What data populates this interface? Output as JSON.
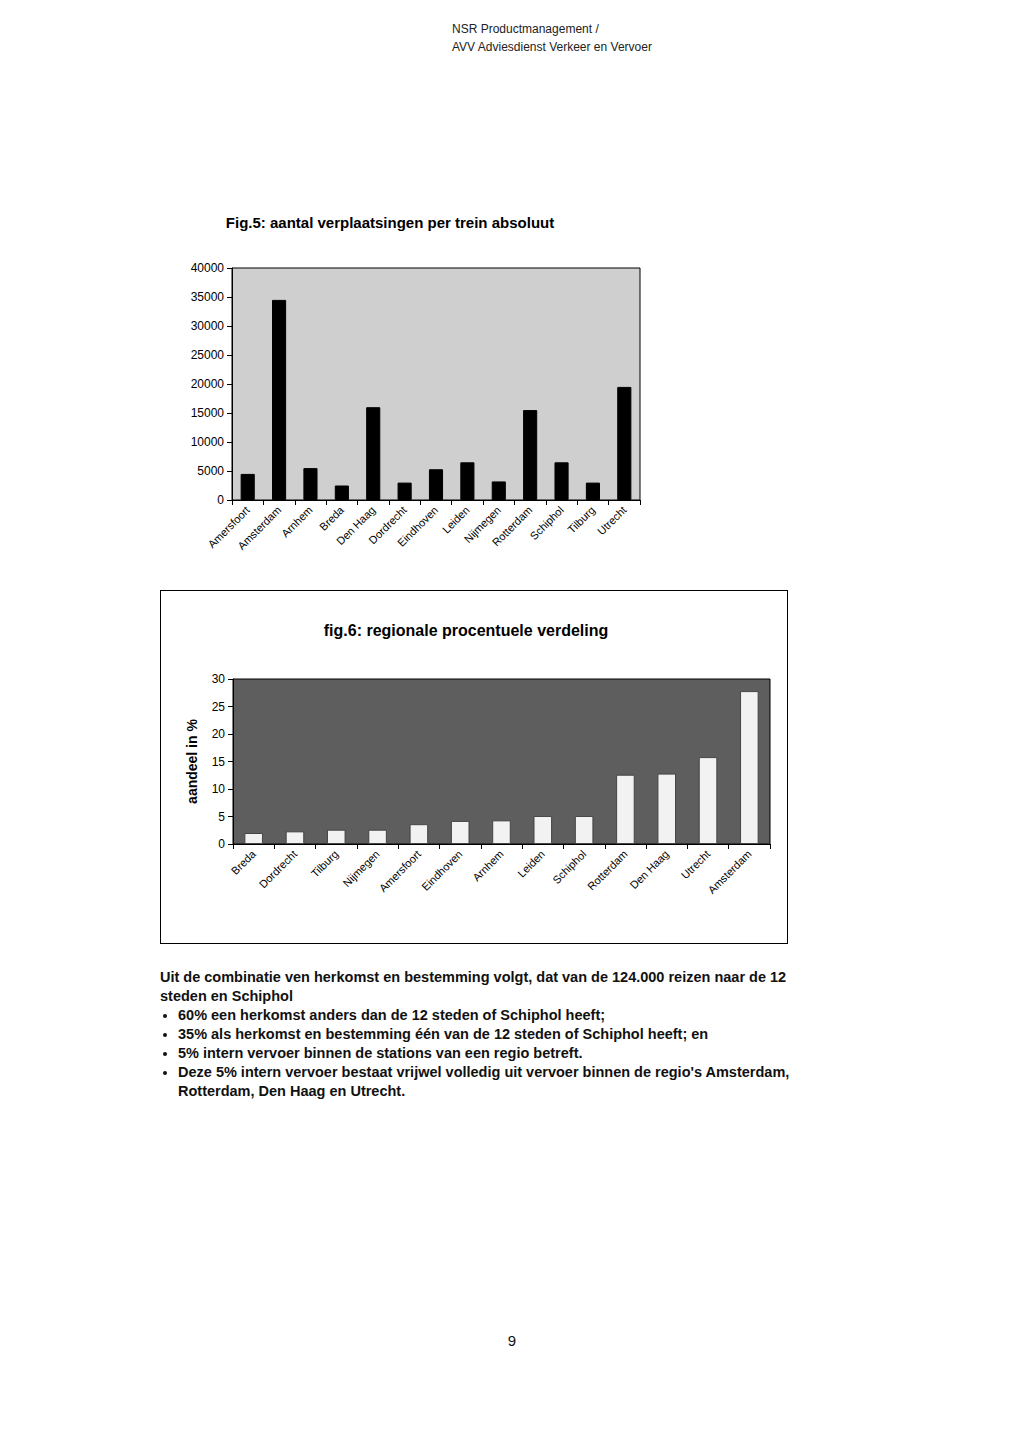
{
  "header": [
    "NSR Productmanagement /",
    "AVV Adviesdienst Verkeer en Vervoer"
  ],
  "chart_data": [
    {
      "type": "bar",
      "title": "Fig.5: aantal verplaatsingen per trein absoluut",
      "categories": [
        "Amersfoort",
        "Amsterdam",
        "Arnhem",
        "Breda",
        "Den Haag",
        "Dordrecht",
        "Eindhoven",
        "Leiden",
        "Nijmegen",
        "Rotterdam",
        "Schiphol",
        "Tilburg",
        "Utrecht"
      ],
      "values": [
        4500,
        34500,
        5500,
        2500,
        16000,
        3000,
        5300,
        6500,
        3200,
        15500,
        6500,
        3000,
        19500
      ],
      "color": "#000000",
      "ylim": [
        0,
        40000
      ],
      "yticks": [
        0,
        5000,
        10000,
        15000,
        20000,
        25000,
        30000,
        35000,
        40000
      ],
      "grid": false
    },
    {
      "type": "bar",
      "title": "fig.6: regionale procentuele verdeling",
      "ylabel": "aandeel in %",
      "categories": [
        "Breda",
        "Dordrecht",
        "Tilburg",
        "Nijmegen",
        "Amersfoort",
        "Eindhoven",
        "Arnhem",
        "Leiden",
        "Schiphol",
        "Rotterdam",
        "Den Haag",
        "Utrecht",
        "Amsterdam"
      ],
      "values": [
        2,
        2.3,
        2.6,
        2.6,
        3.6,
        4.2,
        4.3,
        5.1,
        5.1,
        12.6,
        12.8,
        15.8,
        27.8
      ],
      "color": "#f2f2f2",
      "ylim": [
        0,
        30
      ],
      "yticks": [
        0,
        5,
        10,
        15,
        20,
        25,
        30
      ],
      "grid": false
    }
  ],
  "text": {
    "intro": "Uit de combinatie ven herkomst en bestemming volgt, dat van de 124.000 reizen naar de 12 steden en Schiphol",
    "bullets": [
      "60% een herkomst anders dan de 12 steden of Schiphol heeft;",
      "35% als herkomst en bestemming één van de 12 steden of Schiphol heeft; en",
      "5% intern vervoer binnen de stations van een regio betreft.",
      "Deze 5% intern vervoer bestaat vrijwel volledig uit vervoer binnen de regio's Amsterdam, Rotterdam, Den Haag en Utrecht."
    ]
  },
  "page_number": "9"
}
